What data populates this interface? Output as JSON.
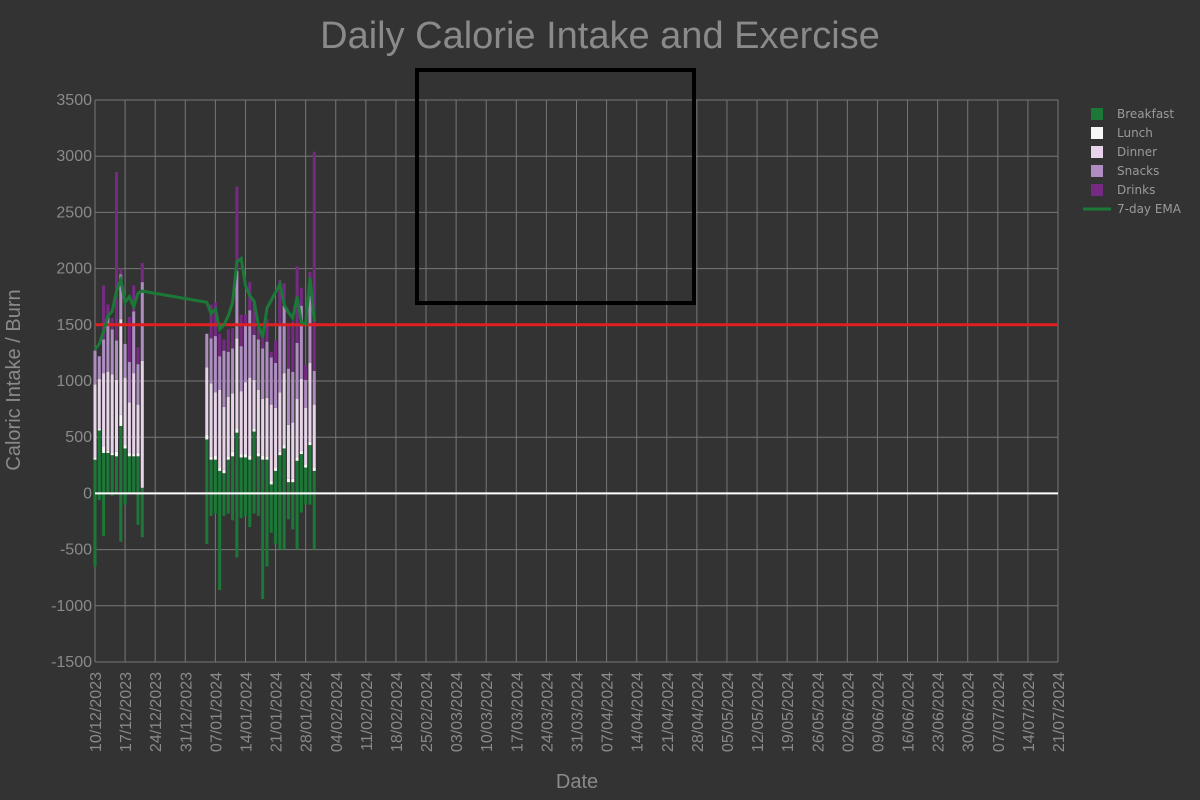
{
  "chart_data": {
    "type": "bar",
    "title": "Daily Calorie Intake and Exercise",
    "xlabel": "Date",
    "ylabel": "Caloric Intake / Burn",
    "ylim": [
      -1500,
      3500
    ],
    "yticks": [
      3500,
      3000,
      2500,
      2000,
      1500,
      1000,
      500,
      0,
      -500,
      -1000,
      -1500
    ],
    "xticks": [
      "10/12/2023",
      "17/12/2023",
      "24/12/2023",
      "31/12/2023",
      "07/01/2024",
      "14/01/2024",
      "21/01/2024",
      "28/01/2024",
      "04/02/2024",
      "11/02/2024",
      "18/02/2024",
      "25/02/2024",
      "03/03/2024",
      "10/03/2024",
      "17/03/2024",
      "24/03/2024",
      "31/03/2024",
      "07/04/2024",
      "14/04/2024",
      "21/04/2024",
      "28/04/2024",
      "05/05/2024",
      "12/05/2024",
      "19/05/2024",
      "26/05/2024",
      "02/06/2024",
      "09/06/2024",
      "16/06/2024",
      "23/06/2024",
      "30/06/2024",
      "07/07/2024",
      "14/07/2024",
      "21/07/2024"
    ],
    "grid": true,
    "legend_position": "top-right",
    "stacked": true,
    "colors": {
      "Breakfast": "#1b7837",
      "Lunch": "#f7f7f7",
      "Dinner": "#e7d4e8",
      "Snacks": "#af8dc3",
      "Drinks": "#762a83",
      "ema": "#1b7837",
      "target": "#e02020",
      "zero": "#ffffff",
      "annotation_box": "#000000"
    },
    "reference_line": {
      "y": 1500
    },
    "day_index_note": "x values are day offsets from 10/12/2023 (first tick)",
    "days": [
      0,
      1,
      2,
      3,
      4,
      5,
      6,
      7,
      8,
      9,
      10,
      11,
      12,
      13,
      14,
      15,
      16,
      17,
      18,
      19,
      20,
      21,
      22,
      23,
      24,
      25,
      26,
      27,
      28,
      29,
      30,
      31,
      32,
      33,
      34,
      35,
      36,
      37,
      38,
      39,
      40,
      41,
      42,
      43,
      44,
      45,
      46,
      47,
      48,
      49,
      50,
      51,
      52,
      53
    ],
    "series": [
      {
        "name": "Breakfast",
        "values": [
          300,
          560,
          360,
          360,
          340,
          330,
          600,
          400,
          330,
          330,
          330,
          50,
          0,
          0,
          0,
          0,
          0,
          0,
          0,
          0,
          0,
          0,
          0,
          0,
          0,
          0,
          480,
          300,
          300,
          200,
          180,
          300,
          330,
          540,
          320,
          320,
          300,
          550,
          330,
          300,
          300,
          80,
          200,
          340,
          400,
          100,
          100,
          290,
          350,
          230,
          430,
          200,
          0,
          0
        ]
      },
      {
        "name": "Lunch",
        "values": [
          20,
          20,
          60,
          20,
          20,
          40,
          100,
          30,
          30,
          20,
          30,
          0,
          0,
          0,
          0,
          0,
          0,
          0,
          0,
          0,
          0,
          0,
          0,
          0,
          0,
          0,
          40,
          30,
          40,
          30,
          30,
          30,
          40,
          40,
          30,
          30,
          40,
          30,
          30,
          40,
          30,
          30,
          30,
          30,
          30,
          30,
          30,
          30,
          30,
          30,
          30,
          30,
          0,
          0
        ]
      },
      {
        "name": "Dinner",
        "values": [
          650,
          440,
          650,
          700,
          700,
          640,
          850,
          600,
          450,
          720,
          430,
          1130,
          0,
          0,
          0,
          0,
          0,
          0,
          0,
          0,
          0,
          0,
          0,
          0,
          0,
          0,
          600,
          650,
          560,
          690,
          560,
          530,
          520,
          800,
          560,
          640,
          690,
          430,
          560,
          500,
          520,
          680,
          530,
          530,
          640,
          480,
          500,
          520,
          640,
          500,
          700,
          560,
          0,
          0
        ]
      },
      {
        "name": "Snacks",
        "values": [
          300,
          200,
          300,
          500,
          400,
          350,
          400,
          300,
          360,
          550,
          360,
          700,
          0,
          0,
          0,
          0,
          0,
          0,
          0,
          0,
          0,
          0,
          0,
          0,
          0,
          0,
          300,
          400,
          500,
          300,
          500,
          400,
          400,
          600,
          400,
          500,
          600,
          400,
          450,
          450,
          500,
          420,
          400,
          600,
          600,
          500,
          450,
          500,
          650,
          250,
          600,
          300,
          0,
          0
        ]
      },
      {
        "name": "Drinks",
        "values": [
          0,
          0,
          480,
          100,
          100,
          1500,
          50,
          0,
          400,
          230,
          150,
          170,
          0,
          0,
          0,
          0,
          0,
          0,
          0,
          0,
          0,
          0,
          0,
          0,
          0,
          0,
          0,
          300,
          300,
          200,
          100,
          200,
          180,
          750,
          280,
          100,
          250,
          300,
          110,
          110,
          200,
          50,
          200,
          400,
          200,
          400,
          450,
          680,
          160,
          130,
          210,
          1950,
          0,
          0
        ]
      }
    ],
    "exercise_burn": [
      -650,
      -60,
      -380,
      0,
      -20,
      0,
      -430,
      -100,
      0,
      0,
      -280,
      -390,
      0,
      0,
      0,
      0,
      0,
      0,
      0,
      0,
      0,
      0,
      0,
      0,
      0,
      0,
      -450,
      -200,
      -180,
      -860,
      -200,
      -180,
      -240,
      -570,
      -220,
      -200,
      -300,
      -180,
      -200,
      -940,
      -650,
      -350,
      -450,
      -500,
      -500,
      -230,
      -320,
      -500,
      -170,
      -100,
      -100,
      -500,
      0,
      0
    ],
    "active_days": [
      0,
      1,
      2,
      3,
      4,
      5,
      6,
      7,
      8,
      9,
      10,
      11,
      26,
      27,
      28,
      29,
      30,
      31,
      32,
      33,
      34,
      35,
      36,
      37,
      38,
      39,
      40,
      41,
      42,
      43,
      44,
      45,
      46,
      47,
      48,
      49,
      50,
      51
    ],
    "ema": {
      "name": "7-day EMA",
      "points": [
        [
          0,
          1280
        ],
        [
          1,
          1330
        ],
        [
          2,
          1440
        ],
        [
          3,
          1580
        ],
        [
          4,
          1620
        ],
        [
          5,
          1800
        ],
        [
          6,
          1900
        ],
        [
          7,
          1700
        ],
        [
          8,
          1750
        ],
        [
          9,
          1660
        ],
        [
          10,
          1780
        ],
        [
          11,
          1800
        ],
        [
          26,
          1700
        ],
        [
          27,
          1600
        ],
        [
          28,
          1640
        ],
        [
          29,
          1460
        ],
        [
          30,
          1500
        ],
        [
          31,
          1580
        ],
        [
          32,
          1700
        ],
        [
          33,
          2060
        ],
        [
          34,
          2090
        ],
        [
          35,
          1850
        ],
        [
          36,
          1760
        ],
        [
          37,
          1710
        ],
        [
          38,
          1500
        ],
        [
          39,
          1390
        ],
        [
          40,
          1650
        ],
        [
          41,
          1720
        ],
        [
          42,
          1790
        ],
        [
          43,
          1860
        ],
        [
          44,
          1680
        ],
        [
          45,
          1610
        ],
        [
          46,
          1560
        ],
        [
          47,
          1750
        ],
        [
          48,
          1520
        ],
        [
          49,
          1510
        ],
        [
          50,
          1920
        ],
        [
          51,
          1530
        ]
      ]
    },
    "legend": [
      "Breakfast",
      "Lunch",
      "Dinner",
      "Snacks",
      "Drinks",
      "7-day EMA"
    ]
  }
}
